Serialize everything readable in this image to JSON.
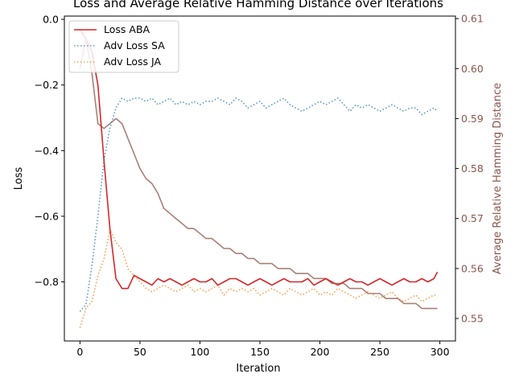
{
  "chart_data": {
    "type": "line",
    "title": "Loss and Average Relative Hamming Distance over Iterations",
    "xlabel": "Iteration",
    "ylabel": "Loss",
    "y2label": "Average Relative Hamming Distance",
    "xlim": [
      -13,
      313
    ],
    "ylim": [
      -0.98,
      0.01
    ],
    "y2lim": [
      0.5455,
      0.6105
    ],
    "x_ticks": [
      0,
      50,
      100,
      150,
      200,
      250,
      300
    ],
    "y_ticks": [
      0.0,
      -0.2,
      -0.4,
      -0.6,
      -0.8
    ],
    "y2_ticks": [
      0.55,
      0.56,
      0.57,
      0.58,
      0.59,
      0.6,
      0.61
    ],
    "y_tick_labels": [
      "0.0",
      "−0.2",
      "−0.4",
      "−0.6",
      "−0.8"
    ],
    "y2_tick_labels": [
      "0.55",
      "0.56",
      "0.57",
      "0.58",
      "0.59",
      "0.60",
      "0.61"
    ],
    "legend_position": "top-left",
    "colors": {
      "loss_aba": "#d62728",
      "adv_loss_sa": "#1f77b4",
      "adv_loss_ja": "#ff7f0e",
      "hamming": "#8c564b"
    },
    "series": [
      {
        "name": "Loss ABA",
        "axis": "left",
        "style": "solid",
        "color": "#d62728",
        "x": [
          0,
          5,
          10,
          15,
          20,
          25,
          30,
          35,
          40,
          45,
          50,
          55,
          60,
          65,
          70,
          75,
          80,
          85,
          90,
          95,
          100,
          105,
          110,
          115,
          120,
          125,
          130,
          135,
          140,
          145,
          150,
          155,
          160,
          165,
          170,
          175,
          180,
          185,
          190,
          195,
          200,
          205,
          210,
          215,
          220,
          225,
          230,
          235,
          240,
          245,
          250,
          255,
          260,
          265,
          270,
          275,
          280,
          285,
          290,
          295,
          298
        ],
        "y": [
          -0.03,
          -0.06,
          -0.1,
          -0.2,
          -0.43,
          -0.64,
          -0.79,
          -0.82,
          -0.82,
          -0.78,
          -0.79,
          -0.8,
          -0.81,
          -0.79,
          -0.8,
          -0.79,
          -0.8,
          -0.81,
          -0.8,
          -0.79,
          -0.8,
          -0.8,
          -0.79,
          -0.81,
          -0.8,
          -0.79,
          -0.79,
          -0.8,
          -0.81,
          -0.8,
          -0.79,
          -0.8,
          -0.81,
          -0.8,
          -0.79,
          -0.8,
          -0.8,
          -0.8,
          -0.79,
          -0.81,
          -0.8,
          -0.79,
          -0.8,
          -0.81,
          -0.8,
          -0.79,
          -0.8,
          -0.8,
          -0.81,
          -0.8,
          -0.79,
          -0.8,
          -0.81,
          -0.8,
          -0.79,
          -0.8,
          -0.8,
          -0.79,
          -0.8,
          -0.79,
          -0.77
        ]
      },
      {
        "name": "Adv Loss SA",
        "axis": "left",
        "style": "dotted",
        "color": "#1f77b4",
        "x": [
          0,
          5,
          10,
          15,
          20,
          25,
          30,
          35,
          40,
          45,
          50,
          55,
          60,
          65,
          70,
          75,
          80,
          85,
          90,
          95,
          100,
          105,
          110,
          115,
          120,
          125,
          130,
          135,
          140,
          145,
          150,
          155,
          160,
          165,
          170,
          175,
          180,
          185,
          190,
          195,
          200,
          205,
          210,
          215,
          220,
          225,
          230,
          235,
          240,
          245,
          250,
          255,
          260,
          265,
          270,
          275,
          280,
          285,
          290,
          295,
          298
        ],
        "y": [
          -0.89,
          -0.87,
          -0.75,
          -0.6,
          -0.43,
          -0.33,
          -0.27,
          -0.24,
          -0.25,
          -0.24,
          -0.24,
          -0.25,
          -0.24,
          -0.26,
          -0.25,
          -0.24,
          -0.26,
          -0.25,
          -0.26,
          -0.25,
          -0.26,
          -0.25,
          -0.25,
          -0.24,
          -0.25,
          -0.26,
          -0.24,
          -0.25,
          -0.27,
          -0.26,
          -0.25,
          -0.27,
          -0.26,
          -0.25,
          -0.24,
          -0.26,
          -0.27,
          -0.28,
          -0.27,
          -0.26,
          -0.25,
          -0.26,
          -0.25,
          -0.24,
          -0.26,
          -0.28,
          -0.26,
          -0.27,
          -0.26,
          -0.27,
          -0.28,
          -0.27,
          -0.26,
          -0.27,
          -0.28,
          -0.27,
          -0.27,
          -0.29,
          -0.28,
          -0.27,
          -0.28
        ]
      },
      {
        "name": "Adv Loss JA",
        "axis": "left",
        "style": "dotted",
        "color": "#ff7f0e",
        "x": [
          0,
          5,
          10,
          15,
          20,
          25,
          30,
          35,
          40,
          45,
          50,
          55,
          60,
          65,
          70,
          75,
          80,
          85,
          90,
          95,
          100,
          105,
          110,
          115,
          120,
          125,
          130,
          135,
          140,
          145,
          150,
          155,
          160,
          165,
          170,
          175,
          180,
          185,
          190,
          195,
          200,
          205,
          210,
          215,
          220,
          225,
          230,
          235,
          240,
          245,
          250,
          255,
          260,
          265,
          270,
          275,
          280,
          285,
          290,
          295,
          298
        ],
        "y": [
          -0.94,
          -0.88,
          -0.86,
          -0.78,
          -0.73,
          -0.64,
          -0.68,
          -0.7,
          -0.76,
          -0.78,
          -0.8,
          -0.82,
          -0.83,
          -0.82,
          -0.81,
          -0.82,
          -0.83,
          -0.82,
          -0.81,
          -0.83,
          -0.82,
          -0.83,
          -0.82,
          -0.81,
          -0.84,
          -0.82,
          -0.83,
          -0.82,
          -0.83,
          -0.82,
          -0.84,
          -0.83,
          -0.82,
          -0.83,
          -0.84,
          -0.82,
          -0.83,
          -0.84,
          -0.83,
          -0.82,
          -0.84,
          -0.83,
          -0.84,
          -0.82,
          -0.83,
          -0.84,
          -0.85,
          -0.84,
          -0.83,
          -0.84,
          -0.85,
          -0.84,
          -0.83,
          -0.85,
          -0.86,
          -0.85,
          -0.84,
          -0.86,
          -0.85,
          -0.84,
          -0.84
        ]
      },
      {
        "name": "Average Relative Hamming Distance",
        "axis": "right",
        "style": "solid",
        "color": "#8c564b",
        "x": [
          0,
          5,
          10,
          15,
          20,
          25,
          30,
          35,
          40,
          45,
          50,
          55,
          60,
          65,
          70,
          75,
          80,
          85,
          90,
          95,
          100,
          105,
          110,
          115,
          120,
          125,
          130,
          135,
          140,
          145,
          150,
          155,
          160,
          165,
          170,
          175,
          180,
          185,
          190,
          195,
          200,
          205,
          210,
          215,
          220,
          225,
          230,
          235,
          240,
          245,
          250,
          255,
          260,
          265,
          270,
          275,
          280,
          285,
          290,
          295,
          298
        ],
        "y": [
          0.6,
          0.606,
          0.599,
          0.589,
          0.588,
          0.589,
          0.59,
          0.589,
          0.586,
          0.583,
          0.58,
          0.578,
          0.577,
          0.575,
          0.572,
          0.571,
          0.57,
          0.569,
          0.568,
          0.568,
          0.567,
          0.566,
          0.566,
          0.565,
          0.564,
          0.564,
          0.563,
          0.563,
          0.562,
          0.562,
          0.561,
          0.561,
          0.561,
          0.56,
          0.56,
          0.56,
          0.559,
          0.559,
          0.559,
          0.558,
          0.558,
          0.558,
          0.557,
          0.557,
          0.557,
          0.556,
          0.556,
          0.556,
          0.555,
          0.555,
          0.555,
          0.554,
          0.554,
          0.554,
          0.553,
          0.553,
          0.553,
          0.552,
          0.552,
          0.552,
          0.552
        ]
      }
    ]
  }
}
